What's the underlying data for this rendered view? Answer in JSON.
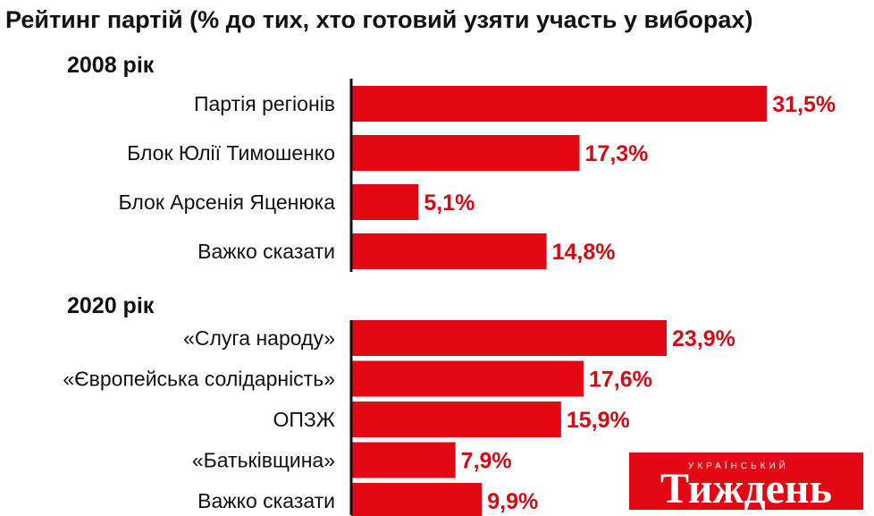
{
  "chart_data": {
    "type": "bar",
    "orientation": "horizontal",
    "title": "Рейтинг партій (% до тих, хто готовий узяти участь у виборах)",
    "unit": "%",
    "bar_color": "#e30613",
    "value_color": "#d40a14",
    "groups": [
      {
        "label": "2008 рік",
        "categories": [
          "Партія регіонів",
          "Блок Юлії Тимошенко",
          "Блок Арсенія Яценюка",
          "Важко сказати"
        ],
        "values": [
          31.5,
          17.3,
          5.1,
          14.8
        ],
        "value_labels": [
          "31,5%",
          "17,3%",
          "5,1%",
          "14,8%"
        ]
      },
      {
        "label": "2020 рік",
        "categories": [
          "«Слуга народу»",
          "«Європейська солідарність»",
          "ОПЗЖ",
          "«Батьківщина»",
          "Важко сказати"
        ],
        "values": [
          23.9,
          17.6,
          15.9,
          7.9,
          9.9
        ],
        "value_labels": [
          "23,9%",
          "17,6%",
          "15,9%",
          "7,9%",
          "9,9%"
        ]
      }
    ]
  },
  "logo": {
    "main": "Тиждень",
    "sub": "УКРАЇНСЬКИЙ",
    "background": "#e30613",
    "icon": "tyzhden-logo"
  }
}
